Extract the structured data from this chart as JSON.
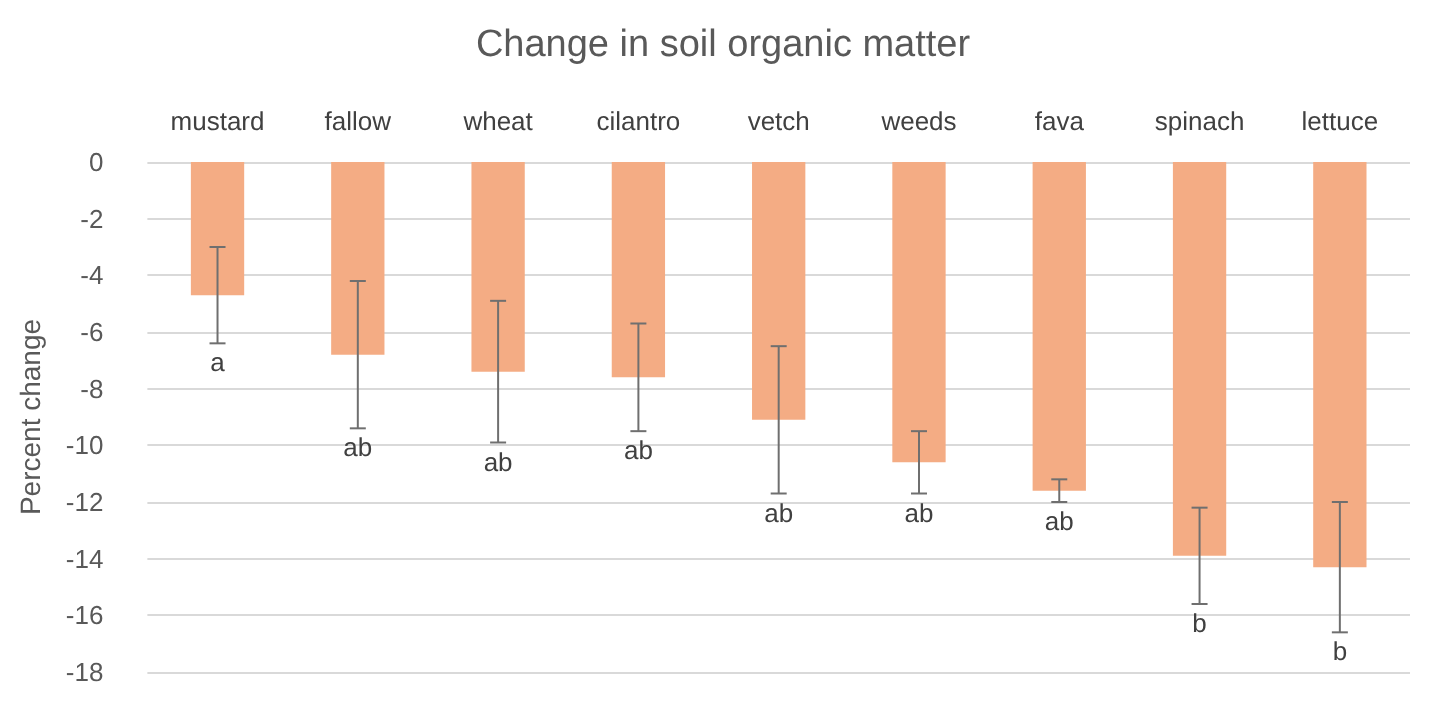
{
  "chart_data": {
    "type": "bar",
    "title": "Change in soil organic matter",
    "ylabel": "Percent change",
    "categories": [
      "mustard",
      "fallow",
      "wheat",
      "cilantro",
      "vetch",
      "weeds",
      "fava",
      "spinach",
      "lettuce"
    ],
    "values": [
      -4.7,
      -6.8,
      -7.4,
      -7.6,
      -9.1,
      -10.6,
      -11.6,
      -13.9,
      -14.3
    ],
    "errors": [
      1.7,
      2.6,
      2.5,
      1.9,
      2.6,
      1.1,
      0.4,
      1.7,
      2.3
    ],
    "color": "#f4ac84",
    "ylim": [
      -18,
      0
    ],
    "yticks": [
      -18,
      -16,
      -14,
      -12,
      -10,
      -8,
      -6,
      -4,
      -2,
      0
    ],
    "grid": "y",
    "annotations": [
      "a",
      "ab",
      "ab",
      "ab",
      "ab",
      "ab",
      "ab",
      "b",
      "b"
    ]
  }
}
